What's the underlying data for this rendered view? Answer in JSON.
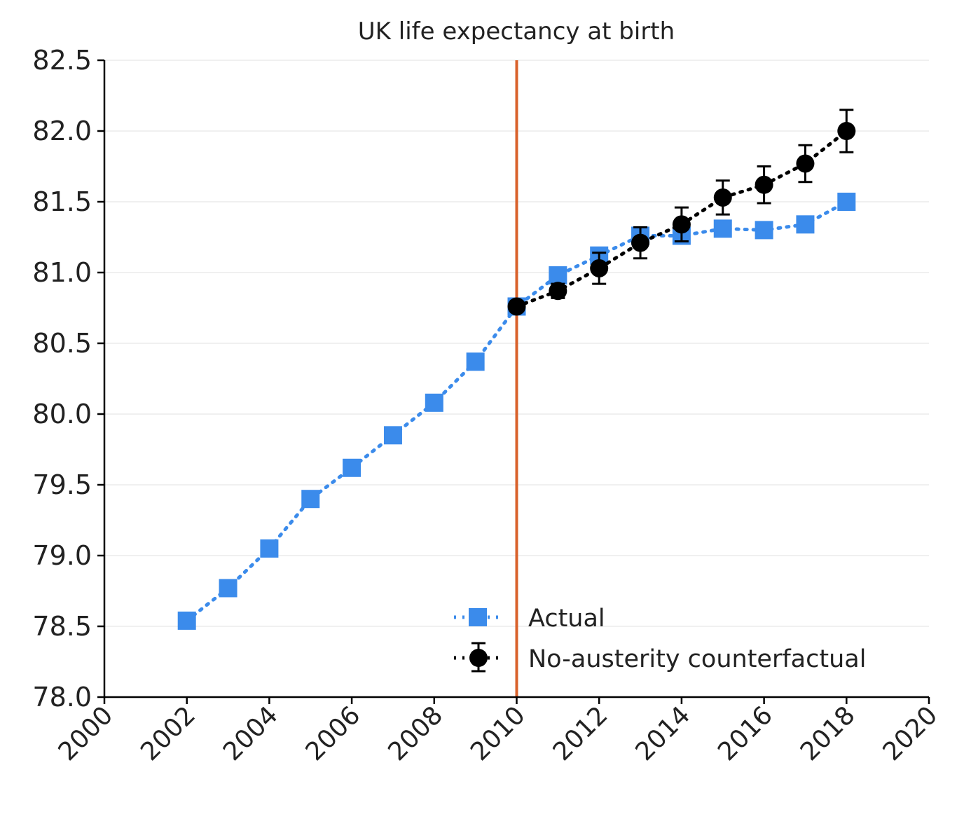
{
  "chart_data": {
    "type": "line",
    "title": "UK life expectancy at birth",
    "xlabel": "",
    "ylabel": "",
    "xlim": [
      2000,
      2020
    ],
    "ylim": [
      78.0,
      82.5
    ],
    "xticks": [
      "2000",
      "2002",
      "2004",
      "2006",
      "2008",
      "2010",
      "2012",
      "2014",
      "2016",
      "2018",
      "2020"
    ],
    "yticks": [
      "78.0",
      "78.5",
      "79.0",
      "79.5",
      "80.0",
      "80.5",
      "81.0",
      "81.5",
      "82.0",
      "82.5"
    ],
    "grid": "horizontal",
    "legend_position": "lower-right",
    "vertical_line": {
      "x": 2010,
      "color": "#d9622b"
    },
    "series": [
      {
        "name": "Actual",
        "color": "#3b8beb",
        "marker": "square",
        "x": [
          2002,
          2003,
          2004,
          2005,
          2006,
          2007,
          2008,
          2009,
          2010,
          2011,
          2012,
          2013,
          2014,
          2015,
          2016,
          2017,
          2018
        ],
        "y": [
          78.54,
          78.77,
          79.05,
          79.4,
          79.62,
          79.85,
          80.08,
          80.37,
          80.76,
          80.98,
          81.12,
          81.26,
          81.26,
          81.31,
          81.3,
          81.34,
          81.5
        ]
      },
      {
        "name": "No-austerity counterfactual",
        "color": "#000000",
        "marker": "circle",
        "x": [
          2010,
          2011,
          2012,
          2013,
          2014,
          2015,
          2016,
          2017,
          2018
        ],
        "y": [
          80.76,
          80.87,
          81.03,
          81.21,
          81.34,
          81.53,
          81.62,
          81.77,
          82.0
        ],
        "error": [
          0,
          0.05,
          0.11,
          0.11,
          0.12,
          0.12,
          0.13,
          0.13,
          0.15
        ]
      }
    ]
  }
}
